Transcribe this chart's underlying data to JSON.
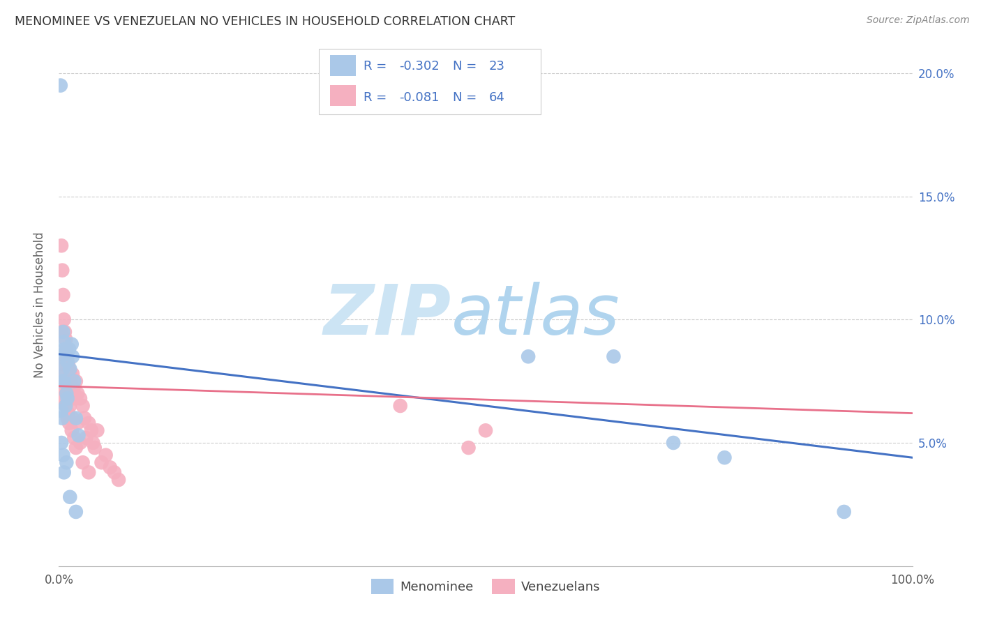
{
  "title": "MENOMINEE VS VENEZUELAN NO VEHICLES IN HOUSEHOLD CORRELATION CHART",
  "source": "Source: ZipAtlas.com",
  "ylabel": "No Vehicles in Household",
  "xlim": [
    0.0,
    1.0
  ],
  "ylim": [
    0.0,
    0.212
  ],
  "yticks": [
    0.05,
    0.1,
    0.15,
    0.2
  ],
  "ytick_labels": [
    "5.0%",
    "10.0%",
    "15.0%",
    "20.0%"
  ],
  "xticks": [
    0.0,
    0.2,
    0.4,
    0.6,
    0.8,
    1.0
  ],
  "xtick_labels": [
    "0.0%",
    "",
    "",
    "",
    "",
    "100.0%"
  ],
  "legend_text_color": "#4472c4",
  "blue_color": "#aac8e8",
  "pink_color": "#f5b0c0",
  "line_blue": "#4472c4",
  "line_pink": "#e8708a",
  "title_color": "#333333",
  "axis_label_color": "#666666",
  "right_tick_color": "#4472c4",
  "background_color": "#ffffff",
  "grid_color": "#cccccc",
  "menominee_x": [
    0.002,
    0.003,
    0.003,
    0.003,
    0.004,
    0.004,
    0.005,
    0.005,
    0.006,
    0.006,
    0.006,
    0.007,
    0.008,
    0.008,
    0.009,
    0.009,
    0.01,
    0.01,
    0.012,
    0.013,
    0.013,
    0.015,
    0.016,
    0.018,
    0.02,
    0.023,
    0.55,
    0.65,
    0.72,
    0.78,
    0.92,
    0.005,
    0.02
  ],
  "menominee_y": [
    0.195,
    0.085,
    0.063,
    0.05,
    0.075,
    0.06,
    0.095,
    0.08,
    0.091,
    0.075,
    0.038,
    0.088,
    0.087,
    0.065,
    0.07,
    0.042,
    0.083,
    0.068,
    0.088,
    0.08,
    0.028,
    0.09,
    0.085,
    0.075,
    0.06,
    0.053,
    0.085,
    0.085,
    0.05,
    0.044,
    0.022,
    0.045,
    0.022
  ],
  "venezuelan_x": [
    0.003,
    0.003,
    0.003,
    0.004,
    0.004,
    0.005,
    0.005,
    0.006,
    0.006,
    0.007,
    0.007,
    0.008,
    0.008,
    0.009,
    0.009,
    0.01,
    0.01,
    0.011,
    0.011,
    0.012,
    0.012,
    0.013,
    0.013,
    0.014,
    0.015,
    0.015,
    0.016,
    0.016,
    0.017,
    0.018,
    0.018,
    0.019,
    0.02,
    0.02,
    0.022,
    0.022,
    0.025,
    0.025,
    0.028,
    0.028,
    0.03,
    0.032,
    0.035,
    0.035,
    0.038,
    0.04,
    0.042,
    0.045,
    0.05,
    0.055,
    0.06,
    0.065,
    0.07,
    0.4,
    0.48,
    0.5
  ],
  "venezuelan_y": [
    0.13,
    0.095,
    0.068,
    0.12,
    0.082,
    0.11,
    0.072,
    0.1,
    0.075,
    0.095,
    0.078,
    0.092,
    0.065,
    0.088,
    0.07,
    0.085,
    0.06,
    0.082,
    0.062,
    0.08,
    0.058,
    0.078,
    0.065,
    0.075,
    0.072,
    0.055,
    0.078,
    0.06,
    0.072,
    0.07,
    0.052,
    0.068,
    0.075,
    0.048,
    0.07,
    0.058,
    0.068,
    0.05,
    0.065,
    0.042,
    0.06,
    0.052,
    0.058,
    0.038,
    0.055,
    0.05,
    0.048,
    0.055,
    0.042,
    0.045,
    0.04,
    0.038,
    0.035,
    0.065,
    0.048,
    0.055
  ],
  "blue_line_x0": 0.0,
  "blue_line_x1": 1.0,
  "blue_line_y0": 0.086,
  "blue_line_y1": 0.044,
  "pink_line_x0": 0.0,
  "pink_line_x1": 1.0,
  "pink_line_y0": 0.073,
  "pink_line_y1": 0.062
}
